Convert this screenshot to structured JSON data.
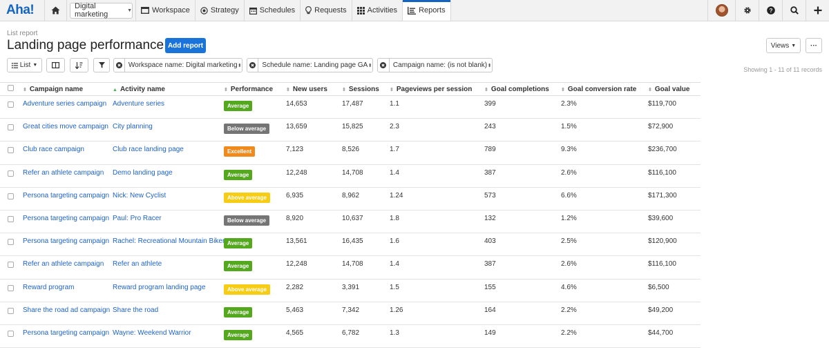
{
  "nav": {
    "logo": "Aha!",
    "workspace": "Digital marketing",
    "tabs": [
      {
        "label": "Workspace",
        "icon": "workspace-icon"
      },
      {
        "label": "Strategy",
        "icon": "strategy-icon"
      },
      {
        "label": "Schedules",
        "icon": "calendar-icon"
      },
      {
        "label": "Requests",
        "icon": "lightbulb-icon"
      },
      {
        "label": "Activities",
        "icon": "grid-icon"
      },
      {
        "label": "Reports",
        "icon": "reports-icon",
        "active": true
      }
    ]
  },
  "header": {
    "breadcrumb": "List report",
    "title": "Landing page performance",
    "add_report": "Add report",
    "views": "Views",
    "more": "···"
  },
  "toolbar": {
    "view_label": "List",
    "filters": [
      "Workspace name: Digital marketing",
      "Schedule name: Landing page GA",
      "Campaign name: (is not blank)"
    ],
    "records": "Showing 1 - 11 of 11 records"
  },
  "colors": {
    "Average": "#54a81e",
    "Below average": "#757575",
    "Excellent": "#f08a1c",
    "Above average": "#f7cc14"
  },
  "table": {
    "columns": [
      "Campaign name",
      "Activity name",
      "Performance",
      "New users",
      "Sessions",
      "Pageviews per session",
      "Goal completions",
      "Goal conversion rate",
      "Goal value"
    ],
    "rows": [
      [
        "Adventure series campaign",
        "Adventure series",
        "Average",
        "14,653",
        "17,487",
        "1.1",
        "399",
        "2.3%",
        "$119,700"
      ],
      [
        "Great cities move campaign",
        "City planning",
        "Below average",
        "13,659",
        "15,825",
        "2.3",
        "243",
        "1.5%",
        "$72,900"
      ],
      [
        "Club race campaign",
        "Club race landing page",
        "Excellent",
        "7,123",
        "8,526",
        "1.7",
        "789",
        "9.3%",
        "$236,700"
      ],
      [
        "Refer an athlete campaign",
        "Demo landing page",
        "Average",
        "12,248",
        "14,708",
        "1.4",
        "387",
        "2.6%",
        "$116,100"
      ],
      [
        "Persona targeting campaign",
        "Nick: New Cyclist",
        "Above average",
        "6,935",
        "8,962",
        "1.24",
        "573",
        "6.6%",
        "$171,300"
      ],
      [
        "Persona targeting campaign",
        "Paul: Pro Racer",
        "Below average",
        "8,920",
        "10,637",
        "1.8",
        "132",
        "1.2%",
        "$39,600"
      ],
      [
        "Persona targeting campaign",
        "Rachel: Recreational Mountain Biker",
        "Average",
        "13,561",
        "16,435",
        "1.6",
        "403",
        "2.5%",
        "$120,900"
      ],
      [
        "Refer an athlete campaign",
        "Refer an athlete",
        "Average",
        "12,248",
        "14,708",
        "1.4",
        "387",
        "2.6%",
        "$116,100"
      ],
      [
        "Reward program",
        "Reward program landing page",
        "Above average",
        "2,282",
        "3,391",
        "1.5",
        "155",
        "4.6%",
        "$6,500"
      ],
      [
        "Share the road ad campaign",
        "Share the road",
        "Average",
        "5,463",
        "7,342",
        "1.26",
        "164",
        "2.2%",
        "$49,200"
      ],
      [
        "Persona targeting campaign",
        "Wayne: Weekend Warrior",
        "Average",
        "4,565",
        "6,782",
        "1.3",
        "149",
        "2.2%",
        "$44,700"
      ]
    ]
  }
}
